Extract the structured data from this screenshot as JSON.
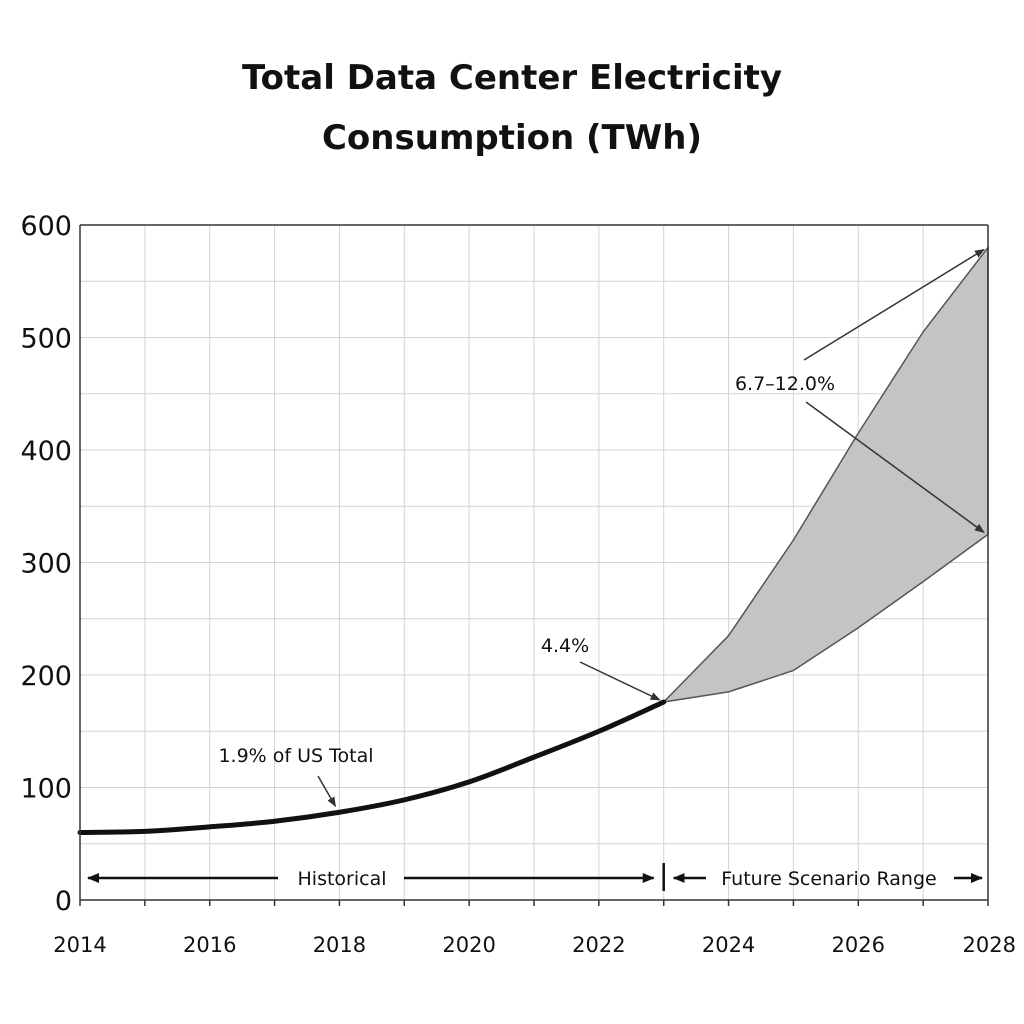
{
  "chart_data": {
    "type": "area",
    "title_lines": [
      "Total Data Center Electricity",
      "Consumption (TWh)"
    ],
    "xlim": [
      2014,
      2028
    ],
    "ylim": [
      0,
      600
    ],
    "x_ticks": [
      "2014",
      "2016",
      "2018",
      "2020",
      "2022",
      "2024",
      "2026",
      "2028"
    ],
    "y_ticks": [
      "0",
      "100",
      "200",
      "300",
      "400",
      "500",
      "600"
    ],
    "grid": true,
    "historical": {
      "x": [
        2014,
        2015,
        2016,
        2017,
        2018,
        2019,
        2020,
        2021,
        2022,
        2023
      ],
      "y": [
        60,
        61,
        65,
        70,
        78,
        89,
        105,
        127,
        150,
        176
      ]
    },
    "scenario_upper": {
      "x": [
        2023,
        2024,
        2025,
        2026,
        2027,
        2028
      ],
      "y": [
        176,
        235,
        320,
        415,
        505,
        580
      ]
    },
    "scenario_lower": {
      "x": [
        2023,
        2024,
        2025,
        2026,
        2027,
        2028
      ],
      "y": [
        176,
        185,
        204,
        242,
        283,
        325
      ]
    },
    "annotations": [
      {
        "text": "1.9% of US Total",
        "x": 2018,
        "y": 78
      },
      {
        "text": "4.4%",
        "x": 2023,
        "y": 176
      },
      {
        "text": "6.7–12.0%",
        "x": 2028,
        "y": [
          325,
          580
        ]
      }
    ],
    "periods": [
      {
        "label": "Historical",
        "from": 2014,
        "to": 2023
      },
      {
        "label": "Future Scenario Range",
        "from": 2023,
        "to": 2028
      }
    ]
  },
  "colors": {
    "line": "#111111",
    "band_fill": "#c4c4c4",
    "band_edge": "#555555",
    "grid": "#d4d4d4"
  }
}
